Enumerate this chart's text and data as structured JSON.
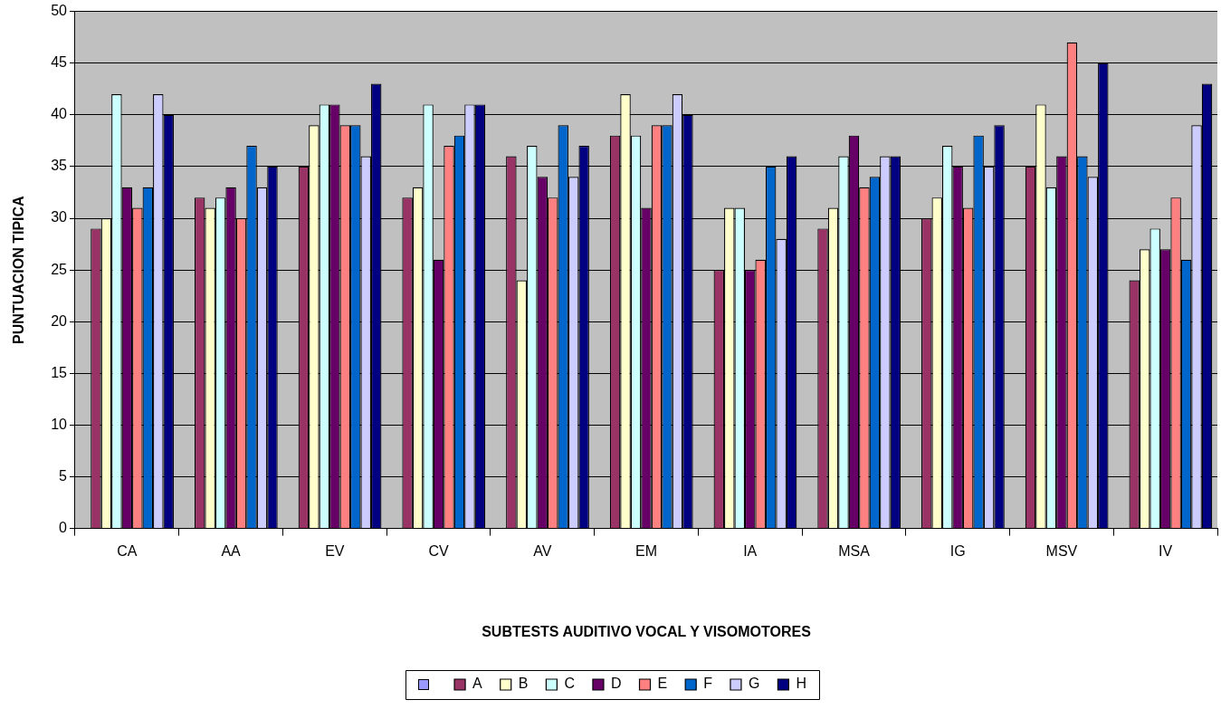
{
  "chart_data": {
    "type": "bar",
    "xlabel": "SUBTESTS AUDITIVO VOCAL Y VISOMOTORES",
    "ylabel": "PUNTUACION TIPICA",
    "categories": [
      "CA",
      "AA",
      "EV",
      "CV",
      "AV",
      "EM",
      "IA",
      "MSA",
      "IG",
      "MSV",
      "IV"
    ],
    "series": [
      {
        "color": "#9999ff",
        "values": [
          null,
          null,
          null,
          null,
          null,
          null,
          null,
          null,
          null,
          null,
          null
        ]
      },
      {
        "name": "A",
        "color": "#993366",
        "values": [
          29,
          32,
          35,
          32,
          36,
          38,
          25,
          29,
          30,
          35,
          24
        ]
      },
      {
        "name": "B",
        "color": "#ffffcc",
        "values": [
          30,
          31,
          39,
          33,
          24,
          42,
          31,
          31,
          32,
          41,
          27
        ]
      },
      {
        "name": "C",
        "color": "#ccffff",
        "values": [
          42,
          32,
          41,
          41,
          37,
          38,
          31,
          36,
          37,
          33,
          29
        ]
      },
      {
        "name": "D",
        "color": "#660066",
        "values": [
          33,
          33,
          41,
          26,
          34,
          31,
          25,
          38,
          35,
          36,
          27
        ]
      },
      {
        "name": "E",
        "color": "#ff8080",
        "values": [
          31,
          30,
          39,
          37,
          32,
          39,
          26,
          33,
          31,
          47,
          32
        ]
      },
      {
        "name": "F",
        "color": "#0066cc",
        "values": [
          33,
          37,
          39,
          38,
          39,
          39,
          35,
          34,
          38,
          36,
          26
        ]
      },
      {
        "name": "G",
        "color": "#ccccff",
        "values": [
          42,
          33,
          36,
          41,
          34,
          42,
          28,
          36,
          35,
          34,
          39
        ]
      },
      {
        "name": "H",
        "color": "#000080",
        "values": [
          40,
          35,
          43,
          41,
          37,
          40,
          36,
          36,
          39,
          45,
          43
        ]
      }
    ],
    "ylim": [
      0,
      50
    ],
    "yticks": [
      0,
      5,
      10,
      15,
      20,
      25,
      30,
      35,
      40,
      45,
      50
    ],
    "grid": "y",
    "legend": "bottom"
  }
}
